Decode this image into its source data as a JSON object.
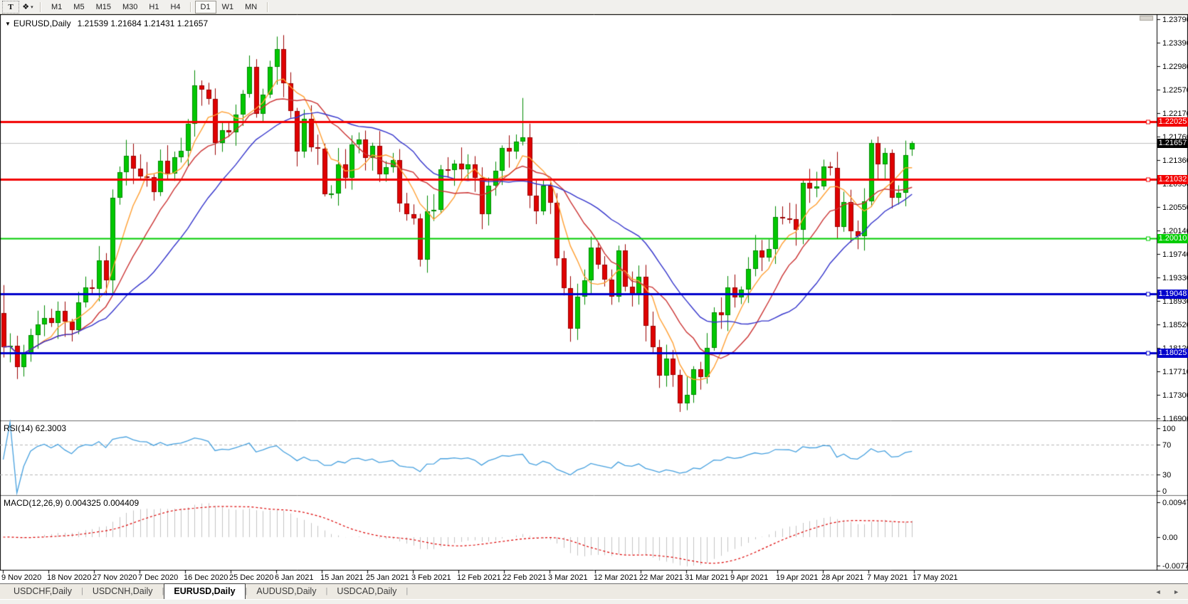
{
  "toolbar": {
    "text_tool": "T",
    "object_tool_glyph": "❖",
    "dropdown_caret": "▾",
    "timeframes": [
      "M1",
      "M5",
      "M15",
      "M30",
      "H1",
      "H4",
      "D1",
      "W1",
      "MN"
    ],
    "active_timeframe": "D1"
  },
  "chart_title": {
    "collapse_arrow": "▼",
    "symbol": "EURUSD,Daily",
    "ohlc": "1.21539 1.21684 1.21431 1.21657"
  },
  "tabs": {
    "items": [
      "USDCHF,Daily",
      "USDCNH,Daily",
      "EURUSD,Daily",
      "AUDUSD,Daily",
      "USDCAD,Daily"
    ],
    "active_index": 2,
    "separator": "|",
    "arrow_left": "◄",
    "arrow_right": "►"
  },
  "chart_data": {
    "type": "candlestick",
    "symbol": "EURUSD",
    "period": "Daily",
    "ylim": [
      1.16863,
      1.23864
    ],
    "yticks": [
      "1.23790",
      "1.23390",
      "1.22980",
      "1.22570",
      "1.22170",
      "1.21760",
      "1.21360",
      "1.20950",
      "1.20550",
      "1.20140",
      "1.19740",
      "1.19330",
      "1.18930",
      "1.18520",
      "1.18120",
      "1.17710",
      "1.17300",
      "1.16900"
    ],
    "x_labels": [
      "9 Nov 2020",
      "18 Nov 2020",
      "27 Nov 2020",
      "7 Dec 2020",
      "16 Dec 2020",
      "25 Dec 2020",
      "6 Jan 2021",
      "15 Jan 2021",
      "25 Jan 2021",
      "3 Feb 2021",
      "12 Feb 2021",
      "22 Feb 2021",
      "3 Mar 2021",
      "12 Mar 2021",
      "22 Mar 2021",
      "31 Mar 2021",
      "9 Apr 2021",
      "19 Apr 2021",
      "28 Apr 2021",
      "7 May 2021",
      "17 May 2021"
    ],
    "first_open": 1.1872,
    "closes": [
      1.1813,
      1.1815,
      1.1779,
      1.1802,
      1.1834,
      1.1852,
      1.1863,
      1.1854,
      1.1875,
      1.1857,
      1.1842,
      1.189,
      1.1916,
      1.1913,
      1.1963,
      1.1928,
      1.2071,
      1.2115,
      1.2143,
      1.2121,
      1.2108,
      1.2106,
      1.208,
      1.2135,
      1.2113,
      1.2141,
      1.2152,
      1.2199,
      1.2265,
      1.2257,
      1.2242,
      1.2165,
      1.2188,
      1.2184,
      1.2214,
      1.225,
      1.2297,
      1.2216,
      1.2249,
      1.2297,
      1.2327,
      1.2268,
      1.222,
      1.2151,
      1.2207,
      1.2158,
      1.2155,
      1.2077,
      1.2078,
      1.2129,
      1.2105,
      1.2163,
      1.2171,
      1.214,
      1.216,
      1.2111,
      1.2123,
      1.2136,
      1.2061,
      1.2043,
      1.2035,
      1.1964,
      1.2048,
      1.205,
      1.212,
      1.2119,
      1.213,
      1.212,
      1.2129,
      1.2105,
      1.2042,
      1.2091,
      1.2118,
      1.2157,
      1.215,
      1.2168,
      1.2175,
      1.2074,
      1.2047,
      1.2091,
      1.2062,
      1.1966,
      1.1915,
      1.1845,
      1.19,
      1.1928,
      1.1985,
      1.1955,
      1.1929,
      1.19,
      1.198,
      1.1917,
      1.1903,
      1.1935,
      1.185,
      1.1813,
      1.1764,
      1.1793,
      1.1765,
      1.1716,
      1.173,
      1.1775,
      1.1761,
      1.1812,
      1.1873,
      1.1868,
      1.1916,
      1.1899,
      1.1912,
      1.1948,
      1.198,
      1.1967,
      1.1982,
      1.2037,
      1.2035,
      1.2034,
      1.2015,
      1.2097,
      1.2087,
      1.209,
      1.2125,
      1.2122,
      1.202,
      1.2063,
      1.2013,
      1.2004,
      1.2065,
      1.2165,
      1.2128,
      1.2148,
      1.2071,
      1.2079,
      1.2144,
      1.21657
    ],
    "hl_overrides": {
      "0": [
        1.192,
        1.1795
      ],
      "37": [
        1.231,
        1.2209
      ],
      "40": [
        1.2349,
        1.2266
      ],
      "47": [
        1.2164,
        1.2073
      ],
      "61": [
        1.2043,
        1.1952
      ],
      "76": [
        1.2243,
        1.2161
      ],
      "99": [
        1.1774,
        1.1701
      ],
      "100": [
        1.1762,
        1.1704
      ],
      "127": [
        1.2171,
        1.2055
      ],
      "133": [
        1.21684,
        1.21431
      ]
    },
    "open_overrides": {
      "133": 1.21539
    },
    "moving_averages": [
      {
        "name": "fast",
        "window": 6,
        "color": "#FFA033"
      },
      {
        "name": "medium",
        "window": 12,
        "color": "#CC3333"
      },
      {
        "name": "slow",
        "window": 22,
        "color": "#3333CC"
      }
    ],
    "hlines": [
      {
        "price": 1.22025,
        "label": "1.22025",
        "color": "#F20000",
        "width": 3
      },
      {
        "price": 1.21032,
        "label": "1.21032",
        "color": "#F20000",
        "width": 3
      },
      {
        "price": 1.2001,
        "label": "1.20010",
        "color": "#00CC00",
        "width": 2
      },
      {
        "price": 1.19048,
        "label": "1.19048",
        "color": "#0000CC",
        "width": 3
      },
      {
        "price": 1.18025,
        "label": "1.18025",
        "color": "#0000CC",
        "width": 3
      }
    ],
    "current_price": {
      "value": 1.21657,
      "label": "1.21657",
      "label_bg": "#000000",
      "line_color": "#C0C0C0"
    },
    "indicators": {
      "rsi": {
        "label": "RSI(14) 62.3003",
        "period": 14,
        "value": 62.3003,
        "levels": [
          70,
          30
        ],
        "ticks": [
          100,
          70,
          30,
          0
        ],
        "color": "#45A0DF"
      },
      "macd": {
        "label": "MACD(12,26,9) 0.004325 0.004409",
        "fast": 12,
        "slow": 26,
        "signal_period": 9,
        "value": 0.004325,
        "signal_value": 0.004409,
        "ticks": [
          {
            "v": 0.009478,
            "text": "0.009478"
          },
          {
            "v": 0,
            "text": "0.00"
          },
          {
            "v": -0.007778,
            "text": "-0.007778"
          }
        ],
        "hist_color": "#C4C4C4",
        "signal_color": "#DD0000"
      }
    },
    "colors": {
      "bull": "#00C800",
      "bull_border": "#008A00",
      "bear": "#DF0202",
      "bear_border": "#9B0000",
      "level_dash": "#B8B8B8",
      "axis": "#000000"
    }
  }
}
